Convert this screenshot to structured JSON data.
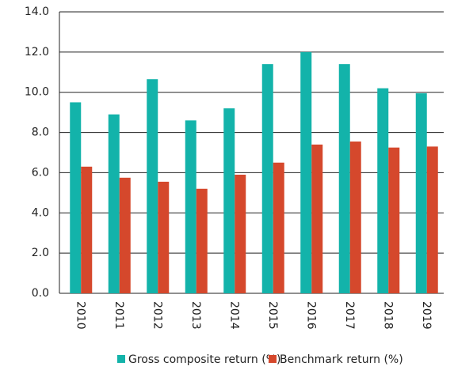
{
  "chart_data": {
    "type": "bar",
    "categories": [
      "2010",
      "2011",
      "2012",
      "2013",
      "2014",
      "2015",
      "2016",
      "2017",
      "2018",
      "2019"
    ],
    "series": [
      {
        "name": "Gross composite return (%)",
        "color": "#13b3aa",
        "values": [
          9.5,
          8.9,
          10.65,
          8.6,
          9.2,
          11.4,
          12.0,
          11.4,
          10.2,
          9.95
        ]
      },
      {
        "name": "Benchmark return (%)",
        "color": "#d5482c",
        "values": [
          6.3,
          5.75,
          5.55,
          5.2,
          5.9,
          6.5,
          7.4,
          7.55,
          7.25,
          7.3
        ]
      }
    ],
    "ylim": [
      0,
      14
    ],
    "yticks": [
      {
        "value": 0,
        "label": "0.0"
      },
      {
        "value": 2,
        "label": "2.0"
      },
      {
        "value": 4,
        "label": "4.0"
      },
      {
        "value": 6,
        "label": "6.0"
      },
      {
        "value": 8,
        "label": "8.0"
      },
      {
        "value": 10,
        "label": "10.0"
      },
      {
        "value": 12,
        "label": "12.0"
      },
      {
        "value": 14,
        "label": "14.0"
      }
    ],
    "grid": true,
    "legend": "bottom"
  }
}
